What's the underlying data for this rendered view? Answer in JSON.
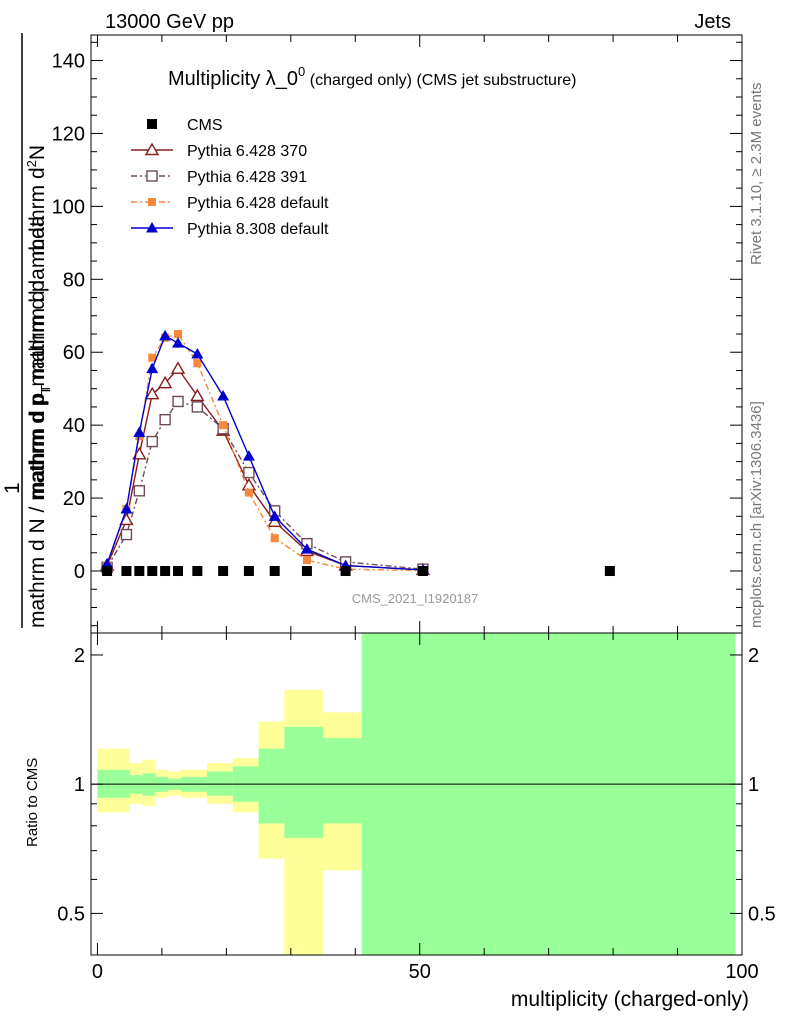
{
  "header": {
    "left": "13000 GeV pp",
    "right": "Jets"
  },
  "side_labels": {
    "rivet": "Rivet 3.1.10, ≥ 2.3M events",
    "mcplots": "mcplots.cern.ch [arXiv:1306.3436]"
  },
  "colors": {
    "cms": "#000000",
    "pythia6_370": "#8b1a1a",
    "pythia6_391": "#6e4a5a",
    "pythia6_default": "#f5883a",
    "pythia8_default": "#0000cc",
    "band_inner": "#99ff99",
    "band_outer": "#ffff99"
  },
  "chart_data": [
    {
      "type": "line",
      "title": "Multiplicity λ_0",
      "title_sup": "0",
      "title_suffix": "(charged only) (CMS jet substructure)",
      "watermark": "CMS_2021_I1920187",
      "ylabel_numer": "mathrm d",
      "ylabel_numer_sup": "2",
      "ylabel_numer_tail": "N",
      "ylabel_denom": "mathrm d p",
      "ylabel_denom_sub": "T",
      "ylabel_denom_tail": " mathrm d lambda",
      "ylabel_frac_top": "1",
      "ylabel_frac_bottom": "mathrm d N / mathrm d p",
      "ylabel_frac_bottom_sub": "T",
      "ylabel_frac_bottom_tail": "mathrm d p",
      "xlim": [
        -1,
        100
      ],
      "ylim": [
        -17,
        147
      ],
      "yticks": [
        0,
        20,
        40,
        60,
        80,
        100,
        120,
        140
      ],
      "legend_position": "top-left",
      "series": [
        {
          "name": "CMS",
          "marker": "square-filled",
          "x": [
            1.5,
            4.5,
            6.5,
            8.5,
            10.5,
            12.5,
            15.5,
            19.5,
            23.5,
            27.5,
            32.5,
            38.5,
            50.5,
            79.5
          ],
          "y": [
            0,
            0,
            0,
            0,
            0,
            0,
            0,
            0,
            0,
            0,
            0,
            0,
            0,
            0
          ]
        },
        {
          "name": "Pythia 6.428 370",
          "marker": "triangle-open",
          "x": [
            1.5,
            4.5,
            6.5,
            8.5,
            10.5,
            12.5,
            15.5,
            19.5,
            23.5,
            27.5,
            32.5,
            38.5,
            50.5
          ],
          "y": [
            1.5,
            14,
            32,
            48.5,
            51.5,
            55.5,
            48,
            38.5,
            23.5,
            13.5,
            5.5,
            1.5,
            0.3
          ]
        },
        {
          "name": "Pythia 6.428 391",
          "marker": "square-open",
          "x": [
            1.5,
            4.5,
            6.5,
            8.5,
            10.5,
            12.5,
            15.5,
            19.5,
            23.5,
            27.5,
            32.5,
            38.5,
            50.5
          ],
          "y": [
            1,
            10,
            22,
            35.5,
            41.5,
            46.5,
            45,
            39,
            27,
            16.5,
            7.5,
            2.5,
            0.5
          ]
        },
        {
          "name": "Pythia 6.428 default",
          "marker": "square-filled-small",
          "x": [
            1.5,
            4.5,
            6.5,
            8.5,
            10.5,
            12.5,
            15.5,
            19.5,
            23.5,
            27.5,
            32.5,
            38.5,
            50.5
          ],
          "y": [
            1.5,
            17,
            37,
            58.5,
            64,
            65,
            57,
            40,
            21.5,
            9,
            3,
            0.5,
            0.1
          ]
        },
        {
          "name": "Pythia 8.308 default",
          "marker": "triangle-filled",
          "x": [
            1.5,
            4.5,
            6.5,
            8.5,
            10.5,
            12.5,
            15.5,
            19.5,
            23.5,
            27.5,
            32.5,
            38.5,
            50.5
          ],
          "y": [
            2,
            17,
            38,
            55.5,
            64.5,
            62.5,
            59.5,
            48,
            31.5,
            15,
            6,
            1.5,
            0.3
          ]
        }
      ]
    },
    {
      "type": "area",
      "ylabel": "Ratio to CMS",
      "xlabel": "multiplicity (charged-only)",
      "xlim": [
        -1,
        100
      ],
      "ylim": [
        0.4,
        2.25
      ],
      "yticks": [
        0.5,
        1,
        2
      ],
      "xticks": [
        0,
        50,
        100
      ],
      "reference_line": 1,
      "bins": [
        0,
        2,
        5,
        7,
        9,
        11,
        13,
        17,
        21,
        25,
        29,
        35,
        41,
        59,
        99
      ],
      "inner_band_low": [
        0.93,
        0.93,
        0.95,
        0.94,
        0.96,
        0.97,
        0.96,
        0.94,
        0.91,
        0.81,
        0.75,
        0.81,
        0.4,
        0.4
      ],
      "inner_band_high": [
        1.08,
        1.08,
        1.05,
        1.06,
        1.04,
        1.03,
        1.04,
        1.07,
        1.1,
        1.21,
        1.36,
        1.28,
        2.25,
        2.25
      ],
      "outer_band_low": [
        0.86,
        0.86,
        0.9,
        0.89,
        0.93,
        0.94,
        0.93,
        0.9,
        0.86,
        0.67,
        0.4,
        0.63,
        0.4,
        0.4
      ],
      "outer_band_high": [
        1.21,
        1.21,
        1.12,
        1.14,
        1.08,
        1.07,
        1.08,
        1.12,
        1.15,
        1.4,
        1.66,
        1.47,
        2.25,
        2.25
      ]
    }
  ]
}
